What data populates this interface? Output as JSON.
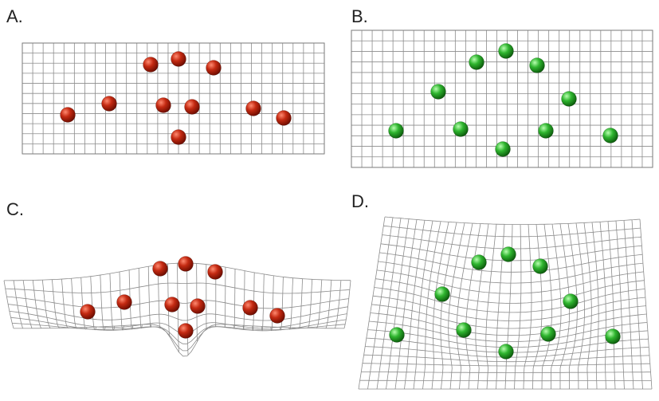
{
  "panels": [
    {
      "label": "A.",
      "surface": "flat",
      "sphere_color": "red",
      "sphere_count": 10
    },
    {
      "label": "B.",
      "surface": "flat",
      "sphere_color": "green",
      "sphere_count": 10
    },
    {
      "label": "C.",
      "surface": "deformed",
      "sphere_color": "red",
      "sphere_count": 10
    },
    {
      "label": "D.",
      "surface": "deformed",
      "sphere_color": "green",
      "sphere_count": 10
    }
  ],
  "colors": {
    "red_sphere": "#c42a12",
    "red_sphere_dark": "#6e0d00",
    "red_sphere_light": "#ff8a70",
    "green_sphere": "#2fb52f",
    "green_sphere_dark": "#0c5c0c",
    "green_sphere_light": "#b8ffb0",
    "grid": "#8c8c8c",
    "background": "#ffffff"
  }
}
